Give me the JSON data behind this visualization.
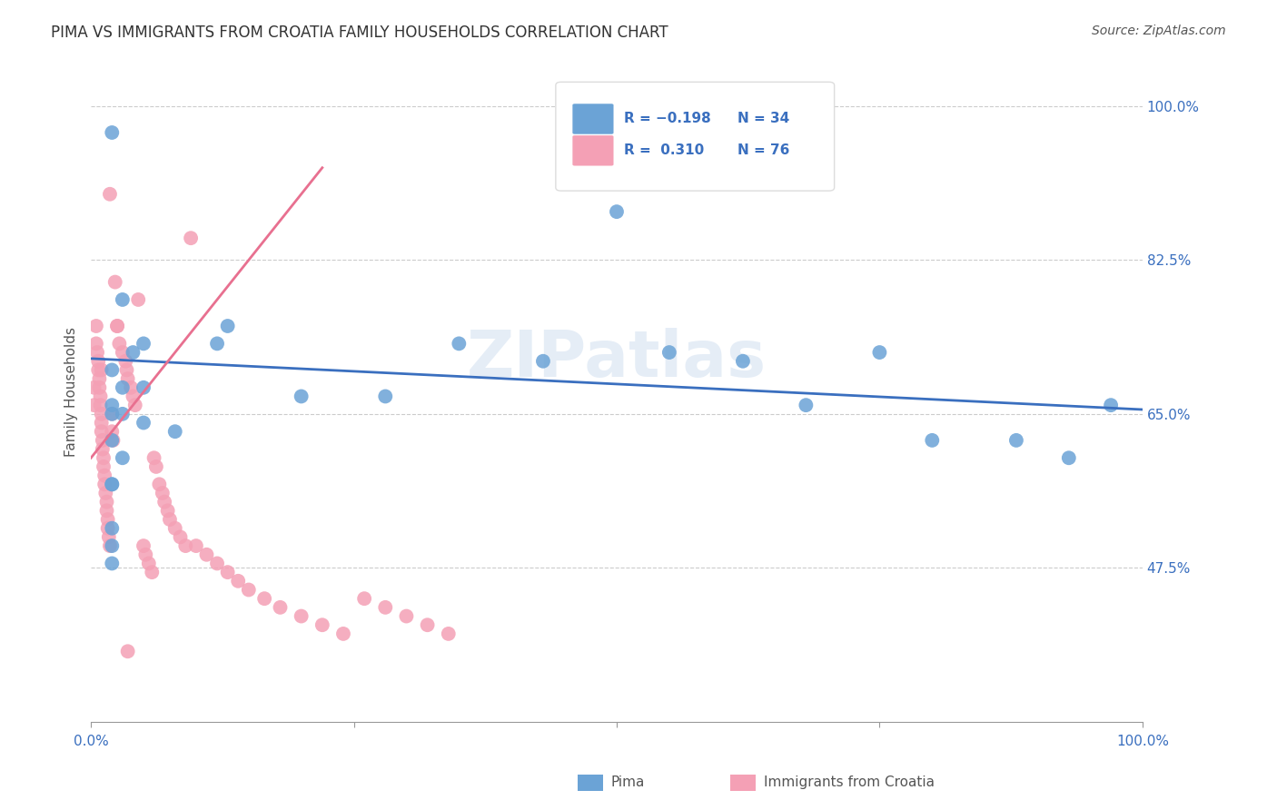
{
  "title": "PIMA VS IMMIGRANTS FROM CROATIA FAMILY HOUSEHOLDS CORRELATION CHART",
  "source": "Source: ZipAtlas.com",
  "ylabel": "Family Households",
  "y_ticks": [
    0.475,
    0.65,
    0.825,
    1.0
  ],
  "y_tick_labels": [
    "47.5%",
    "65.0%",
    "82.5%",
    "100.0%"
  ],
  "legend_blue_r": "R = −0.198",
  "legend_blue_n": "N = 34",
  "legend_pink_r": "R =  0.310",
  "legend_pink_n": "N = 76",
  "blue_color": "#6ba3d6",
  "pink_color": "#f4a0b5",
  "blue_line_color": "#3a6fbf",
  "pink_line_color": "#e87090",
  "watermark": "ZIPatlas",
  "blue_scatter_x": [
    0.02,
    0.03,
    0.04,
    0.05,
    0.02,
    0.03,
    0.05,
    0.08,
    0.12,
    0.02,
    0.03,
    0.02,
    0.02,
    0.03,
    0.02,
    0.05,
    0.02,
    0.02,
    0.02,
    0.02,
    0.13,
    0.2,
    0.28,
    0.35,
    0.43,
    0.5,
    0.55,
    0.62,
    0.68,
    0.75,
    0.8,
    0.88,
    0.93,
    0.97
  ],
  "blue_scatter_y": [
    0.97,
    0.78,
    0.72,
    0.68,
    0.66,
    0.65,
    0.64,
    0.63,
    0.73,
    0.7,
    0.68,
    0.65,
    0.62,
    0.6,
    0.57,
    0.73,
    0.57,
    0.52,
    0.5,
    0.48,
    0.75,
    0.67,
    0.67,
    0.73,
    0.71,
    0.88,
    0.72,
    0.71,
    0.66,
    0.72,
    0.62,
    0.62,
    0.6,
    0.66
  ],
  "pink_scatter_x": [
    0.003,
    0.003,
    0.005,
    0.005,
    0.006,
    0.007,
    0.007,
    0.008,
    0.008,
    0.009,
    0.009,
    0.01,
    0.01,
    0.01,
    0.011,
    0.011,
    0.012,
    0.012,
    0.013,
    0.013,
    0.014,
    0.015,
    0.015,
    0.016,
    0.016,
    0.017,
    0.018,
    0.02,
    0.02,
    0.021,
    0.023,
    0.025,
    0.027,
    0.03,
    0.033,
    0.034,
    0.035,
    0.038,
    0.04,
    0.042,
    0.045,
    0.05,
    0.052,
    0.055,
    0.058,
    0.06,
    0.062,
    0.065,
    0.068,
    0.07,
    0.073,
    0.075,
    0.08,
    0.085,
    0.09,
    0.095,
    0.1,
    0.11,
    0.12,
    0.13,
    0.14,
    0.15,
    0.165,
    0.18,
    0.2,
    0.22,
    0.24,
    0.26,
    0.28,
    0.3,
    0.32,
    0.34,
    0.01,
    0.018,
    0.025,
    0.035
  ],
  "pink_scatter_y": [
    0.68,
    0.66,
    0.75,
    0.73,
    0.72,
    0.71,
    0.7,
    0.69,
    0.68,
    0.67,
    0.66,
    0.65,
    0.64,
    0.63,
    0.62,
    0.61,
    0.6,
    0.59,
    0.58,
    0.57,
    0.56,
    0.55,
    0.54,
    0.53,
    0.52,
    0.51,
    0.5,
    0.65,
    0.63,
    0.62,
    0.8,
    0.75,
    0.73,
    0.72,
    0.71,
    0.7,
    0.69,
    0.68,
    0.67,
    0.66,
    0.78,
    0.5,
    0.49,
    0.48,
    0.47,
    0.6,
    0.59,
    0.57,
    0.56,
    0.55,
    0.54,
    0.53,
    0.52,
    0.51,
    0.5,
    0.85,
    0.5,
    0.49,
    0.48,
    0.47,
    0.46,
    0.45,
    0.44,
    0.43,
    0.42,
    0.41,
    0.4,
    0.44,
    0.43,
    0.42,
    0.41,
    0.4,
    0.7,
    0.9,
    0.75,
    0.38
  ],
  "blue_line_x": [
    0.0,
    1.0
  ],
  "blue_line_y": [
    0.713,
    0.655
  ],
  "pink_line_x": [
    0.0,
    0.22
  ],
  "pink_line_y": [
    0.6,
    0.93
  ],
  "xlim": [
    0.0,
    1.0
  ],
  "ylim": [
    0.3,
    1.05
  ]
}
